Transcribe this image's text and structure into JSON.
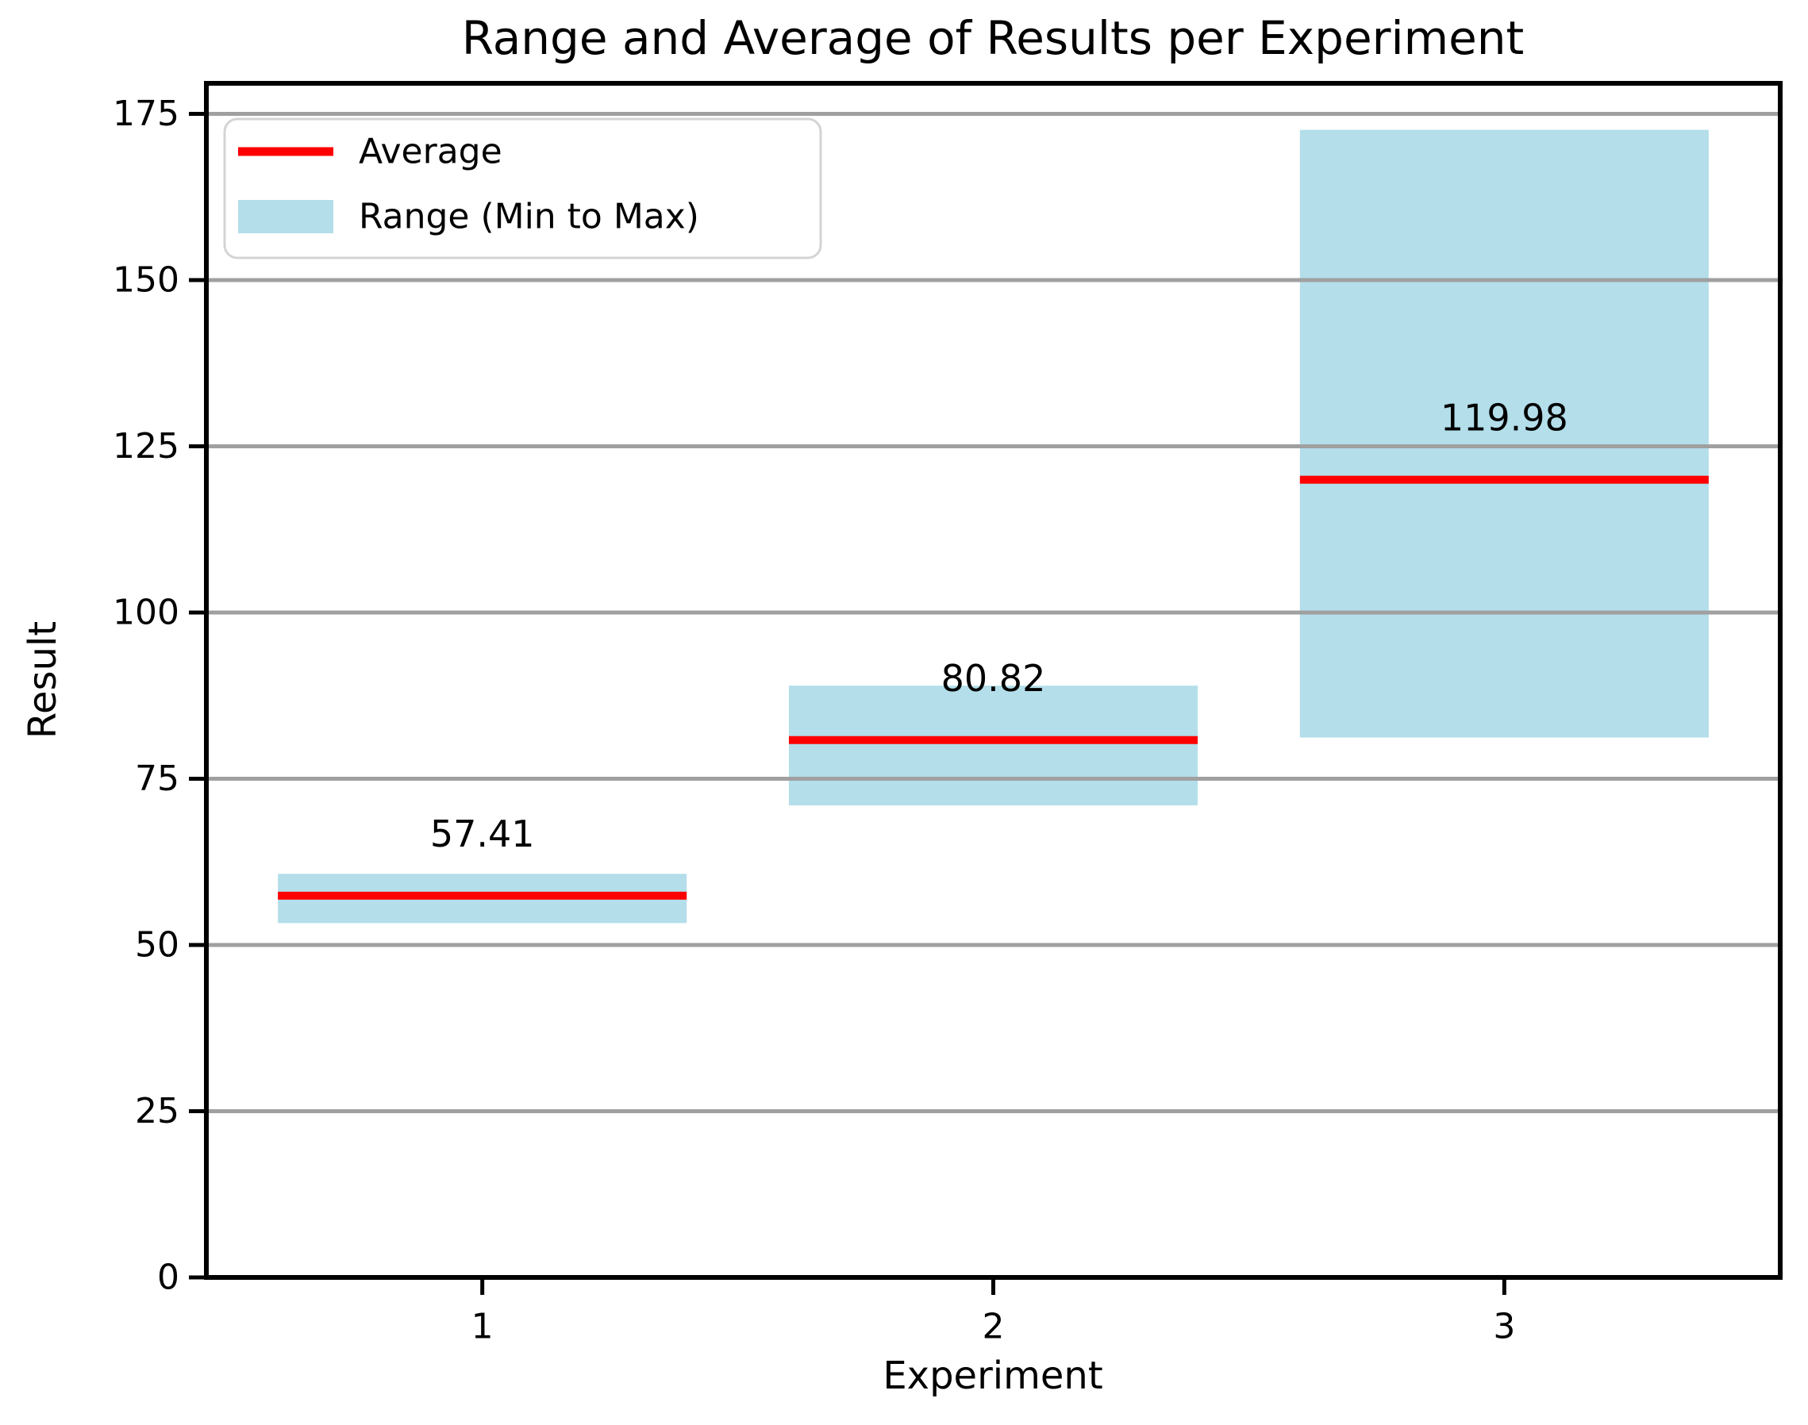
{
  "chart_data": {
    "type": "bar",
    "title": "Range and Average of Results per Experiment",
    "xlabel": "Experiment",
    "ylabel": "Result",
    "categories": [
      "1",
      "2",
      "3"
    ],
    "x_positions": [
      1,
      2,
      3
    ],
    "xlim": [
      0.46,
      3.54
    ],
    "ylim": [
      0,
      179.6
    ],
    "yticks": [
      0,
      25,
      50,
      75,
      100,
      125,
      150,
      175
    ],
    "grid": "horizontal",
    "bar_width": 0.8,
    "series": [
      {
        "name": "Average",
        "type": "line",
        "color": "#ff0000",
        "values": [
          57.41,
          80.82,
          119.98
        ]
      },
      {
        "name": "Range (Min to Max)",
        "type": "range-bar",
        "color": "#b3deea",
        "min": [
          53.3,
          71.0,
          81.2
        ],
        "max": [
          60.7,
          89.0,
          172.6
        ]
      }
    ],
    "value_labels": [
      "57.41",
      "80.82",
      "119.98"
    ],
    "legend": {
      "position": "upper-left",
      "entries": [
        {
          "label": "Average",
          "swatch": "line",
          "color": "#ff0000"
        },
        {
          "label": "Range (Min to Max)",
          "swatch": "patch",
          "color": "#b3deea"
        }
      ]
    }
  },
  "colors": {
    "background": "#ffffff",
    "axis": "#000000",
    "grid": "#a0a0a0",
    "text": "#000000",
    "average_line": "#ff0000",
    "range_fill": "#b3deea",
    "legend_border": "#d4d4d4",
    "legend_fill": "#ffffff"
  }
}
